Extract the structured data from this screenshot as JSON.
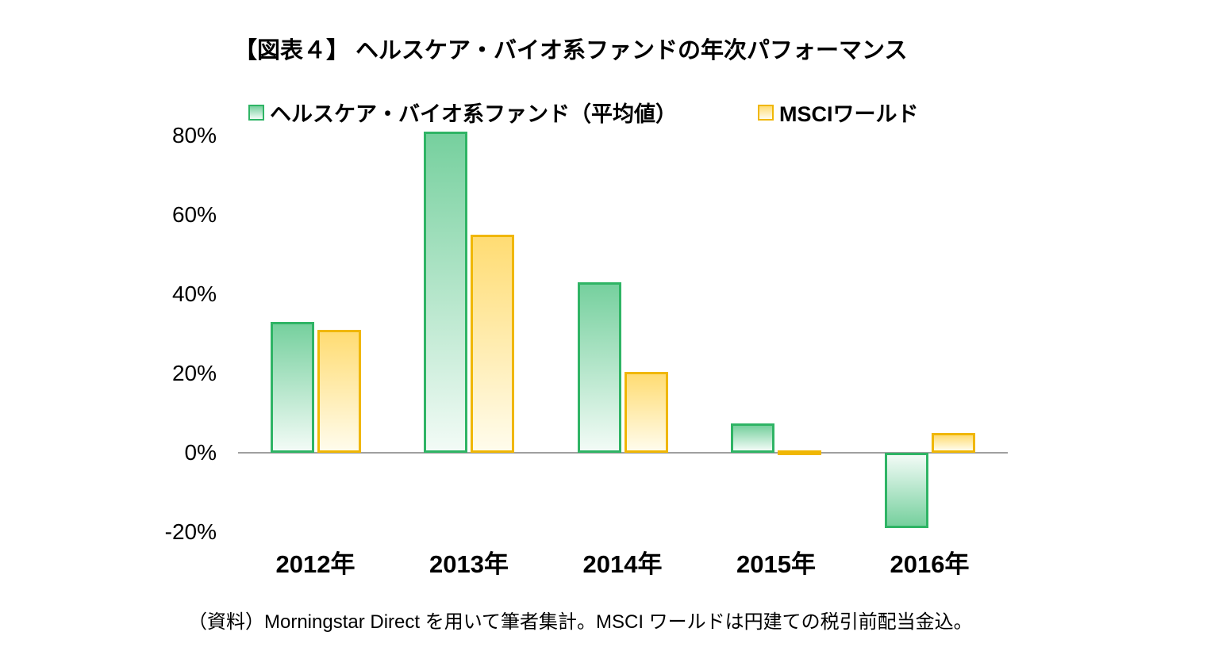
{
  "title": "【図表４】 ヘルスケア・バイオ系ファンドの年次パフォーマンス",
  "legend": [
    {
      "label": "ヘルスケア・バイオ系ファンド（平均値）",
      "fill": "#76D09E",
      "border": "#2FB465"
    },
    {
      "label": "MSCIワールド",
      "fill": "#FFDC73",
      "border": "#F0B705"
    }
  ],
  "footer": "（資料）Morningstar Direct を用いて筆者集計。MSCI ワールドは円建ての税引前配当金込。",
  "chart_data": {
    "type": "bar",
    "title": "【図表４】 ヘルスケア・バイオ系ファンドの年次パフォーマンス",
    "categories": [
      "2012年",
      "2013年",
      "2014年",
      "2015年",
      "2016年"
    ],
    "series": [
      {
        "name": "ヘルスケア・バイオ系ファンド（平均値）",
        "color": "#2FB465",
        "values": [
          33,
          81,
          43,
          7.5,
          -19
        ]
      },
      {
        "name": "MSCIワールド",
        "color": "#F0B705",
        "values": [
          31,
          55,
          20.5,
          0.5,
          5
        ]
      }
    ],
    "xlabel": "",
    "ylabel": "",
    "yticks": [
      80,
      60,
      40,
      20,
      0,
      -20
    ],
    "ytick_labels": [
      "80%",
      "60%",
      "40%",
      "20%",
      "0%",
      "-20%"
    ],
    "ylim": [
      -25,
      85
    ],
    "grid": false,
    "legend_position": "top",
    "zero_axis_color": "#A0A0A0"
  }
}
